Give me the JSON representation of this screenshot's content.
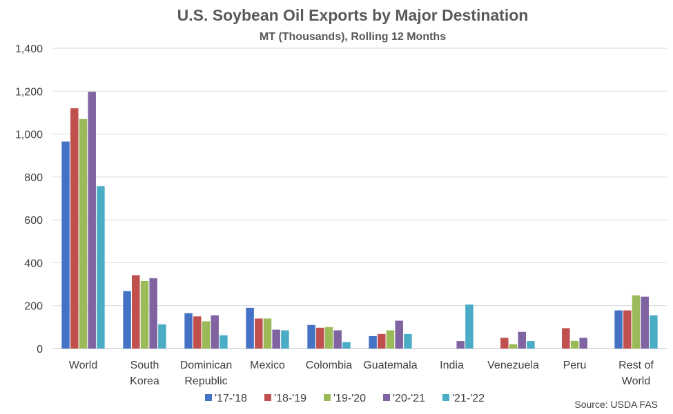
{
  "chart_data": {
    "type": "bar",
    "title": "U.S. Soybean Oil Exports by Major Destination",
    "subtitle": "MT (Thousands), Rolling 12 Months",
    "categories": [
      [
        "World"
      ],
      [
        "South",
        "Korea"
      ],
      [
        "Dominican",
        "Republic"
      ],
      [
        "Mexico"
      ],
      [
        "Colombia"
      ],
      [
        "Guatemala"
      ],
      [
        "India"
      ],
      [
        "Venezuela"
      ],
      [
        "Peru"
      ],
      [
        "Rest of",
        "World"
      ]
    ],
    "ylim": [
      0,
      1400
    ],
    "yticks": [
      0,
      200,
      400,
      600,
      800,
      1000,
      1200,
      1400
    ],
    "ytick_labels": [
      "0",
      "200",
      "400",
      "600",
      "800",
      "1,000",
      "1,200",
      "1,400"
    ],
    "grid": true,
    "legend_position": "bottom",
    "series": [
      {
        "name": "'17-'18",
        "color": "#4472C4",
        "values": [
          965,
          268,
          165,
          190,
          110,
          58,
          0,
          0,
          0,
          178
        ]
      },
      {
        "name": "'18-'19",
        "color": "#C0504D",
        "values": [
          1120,
          342,
          150,
          140,
          97,
          68,
          0,
          50,
          95,
          178
        ]
      },
      {
        "name": "'19-'20",
        "color": "#9BBB59",
        "values": [
          1070,
          315,
          127,
          140,
          100,
          85,
          0,
          20,
          36,
          248
        ]
      },
      {
        "name": "'20-'21",
        "color": "#8064A2",
        "values": [
          1197,
          328,
          155,
          88,
          85,
          130,
          35,
          78,
          50,
          242
        ]
      },
      {
        "name": "'21-'22",
        "color": "#4BACC6",
        "values": [
          757,
          113,
          62,
          85,
          30,
          68,
          205,
          35,
          0,
          155
        ]
      }
    ],
    "source": "Source: USDA FAS"
  }
}
